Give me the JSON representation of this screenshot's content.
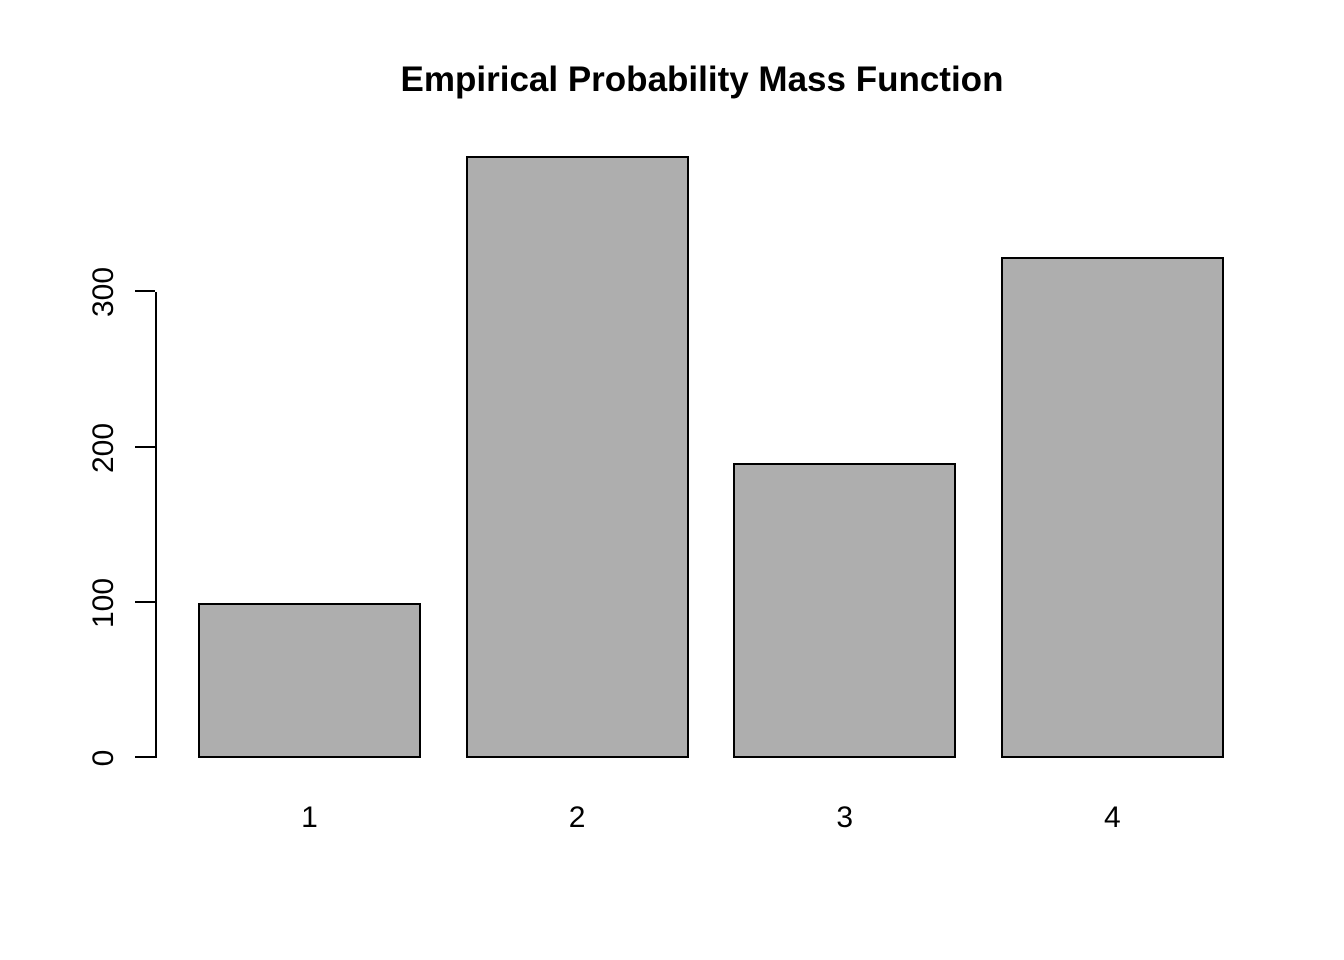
{
  "chart_data": {
    "type": "bar",
    "title": "Empirical Probability Mass Function",
    "categories": [
      "1",
      "2",
      "3",
      "4"
    ],
    "values": [
      100,
      388,
      190,
      323
    ],
    "xlabel": "",
    "ylabel": "",
    "ylim": [
      0,
      390
    ],
    "ytick_values": [
      0,
      100,
      200,
      300
    ],
    "ytick_labels": [
      "0",
      "100",
      "200",
      "300"
    ],
    "grid": false,
    "legend": "none",
    "bar_fill": "#AEAEAE",
    "bar_border": "#000000",
    "axis_color": "#000000",
    "text_color": "#000000",
    "background": "#FFFFFF"
  }
}
